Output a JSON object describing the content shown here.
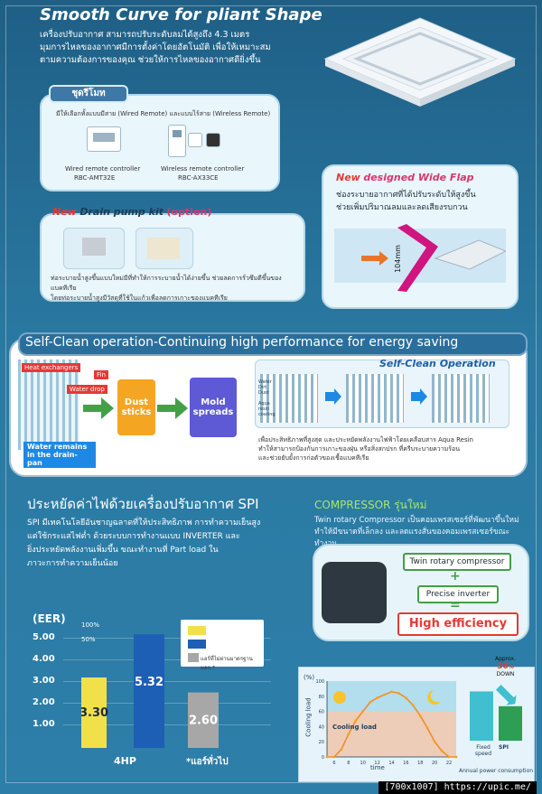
{
  "header": {
    "title": "Smooth Curve for pliant Shape",
    "intro": [
      "เครื่องปรับอากาศ สามารถปรับระดับลมได้สูงถึง 4.3 เมตร",
      "มุมการไหลของอากาศมีการตั้งค่าโดยอัตโนมัติ เพื่อให้เหมาะสม",
      "ตามความต้องการของคุณ ช่วยให้การไหลของอากาศดียิ่งขึ้น"
    ]
  },
  "remote_panel": {
    "tag": "ชุดรีโมท",
    "line": "มีให้เลือกทั้งแบบมีสาย (Wired Remote)   และแบบไร้สาย (Wireless Remote)",
    "wired_name": "Wired remote controller",
    "wired_model": "RBC-AMT32E",
    "wireless_name": "Wireless remote controller",
    "wireless_model": "RBC-AX33CE"
  },
  "wide_flap": {
    "new": "New",
    "title": "designed Wide Flap",
    "text1": "ช่องระบายอากาศที่ได้ปรับระดับให้สูงขึ้น",
    "text2": "ช่วยเพิ่มปริมาณลมและลดเสียงรบกวน",
    "dimension": "104mm"
  },
  "drain": {
    "new": "New",
    "title": "Drain pump kit",
    "option": "(option)",
    "desc1": "ท่อระบายน้ำสูงขึ้นแบบใหม่มีที่ทำให้การระบายน้ำได้ง่ายขึ้น ช่วยลดการรั่วซึมดีขึ้นของแบคทีเรีย",
    "desc2": "โดยท่อระบายน้ำสูงมีวัสดุที่ใช้ในแก้วเพื่อลดการเกาะของแบคทีเรีย"
  },
  "self_clean": {
    "headline": "Self-Clean operation-Continuing high performance for energy saving",
    "heat_exchangers": "Heat exchangers",
    "fin": "Fin",
    "water_drop": "Water drop",
    "water_remains": "Water remains",
    "drain_pan": "in the drain-pan",
    "dust": "Dust",
    "sticks": "sticks",
    "mold": "Mold",
    "spreads": "spreads",
    "op_title": "Self-Clean Operation",
    "lbl_water": "Water",
    "lbl_dirt": "Dirt",
    "lbl_dust": "Dust",
    "lbl_aqua": "Aqua",
    "lbl_resin": "resin",
    "lbl_coating": "coating",
    "caption1": "เพื่อประสิทธิภาพที่สูงสุด และประหยัดพลังงานไฟฟ้าโดยเคลือบสาร Aqua Resin",
    "caption2": "ทำให้สามารถป้องกันการเกาะของฝุ่น หรือสิ่งสกปรก ที่ครีบระบายความร้อน",
    "caption3": "และช่วยยับยั้งการก่อตัวของเชื้อแบคทีเรีย"
  },
  "spi": {
    "headline": "ประหยัดค่าไฟด้วยเครื่องปรับอากาศ SPI",
    "p1": "SPI มีเทคโนโลยีอันชาญฉลาดที่ให้ประสิทธิภาพ การทำความเย็นสูง",
    "p2": "แต่ใช้กระแสไฟต่ำ ด้วยระบบการทำงานแบบ INVERTER และ",
    "p3": "ยิ่งประหยัดพลังงานเพิ่มขึ้น ขณะทำงานที่ Part load ใน",
    "p4": "ภาวะการทำความเย็นน้อย"
  },
  "compressor": {
    "headline": "COMPRESSOR รุ่นใหม่",
    "p1": "Twin rotary Compressor เป็นคอมเพรสเซอร์ที่พัฒนาขึ้นใหม่",
    "p2": "ทำให้มีขนาดที่เล็กลง และลดแรงสั่นของคอมเพรสเซอร์ขณะทำงาน",
    "box1": "Twin rotary compressor",
    "plus": "+",
    "box2": "Precise inverter",
    "equals": "=",
    "box3": "High efficiency"
  },
  "eer_chart": {
    "title": "(EER)",
    "y_ticks": [
      "5.00",
      "4.00",
      "3.00",
      "2.00",
      "1.00"
    ],
    "legend": {
      "p100": "100%",
      "p50": "50%",
      "note": "แอร์ที่ไม่ผ่านมาตรฐาน มอก.*"
    },
    "x_labels": [
      "4HP",
      "*แอร์ทั่วไป"
    ],
    "chart_data": {
      "type": "bar",
      "title": "(EER)",
      "categories": [
        "3.30",
        "5.32",
        "2.60"
      ],
      "values": [
        3.3,
        5.32,
        2.6
      ],
      "ylim": [
        0,
        5.5
      ],
      "colors": [
        "#f2e04b",
        "#1d5fb5",
        "#a7a7a7"
      ],
      "grid": true,
      "legend_position": "top-right"
    }
  },
  "load_chart": {
    "ylabel": "Cooling load",
    "y_top": "(%)",
    "y_ticks": [
      "100",
      "80",
      "60",
      "40",
      "20",
      "0"
    ],
    "x_ticks": [
      "6",
      "8",
      "10",
      "12",
      "14",
      "16",
      "18",
      "20",
      "22"
    ],
    "xlabel": "time",
    "curve_label": "Cooling load",
    "chart_data": {
      "type": "line",
      "x": [
        5,
        6,
        7,
        8,
        9,
        10,
        11,
        12,
        13,
        14,
        15,
        16,
        17,
        18,
        19,
        20,
        21,
        22,
        23
      ],
      "y": [
        0,
        0,
        10,
        30,
        48,
        60,
        72,
        78,
        82,
        86,
        84,
        78,
        68,
        54,
        38,
        20,
        8,
        0,
        0
      ],
      "xlabel": "time",
      "ylabel": "Cooling load",
      "ylim": [
        0,
        100
      ]
    }
  },
  "power_chart": {
    "approx": "Approx.",
    "pct": "30",
    "pct_unit": "%",
    "down": "DOWN",
    "xlabels": [
      "Fixed",
      "speed",
      "SPI"
    ],
    "caption": "Annual power consumption",
    "chart_data": {
      "type": "bar",
      "categories": [
        "Fixed speed",
        "SPI"
      ],
      "values": [
        100,
        70
      ],
      "ylim": [
        0,
        110
      ]
    }
  },
  "watermark": "[700x1007] https://upic.me/"
}
